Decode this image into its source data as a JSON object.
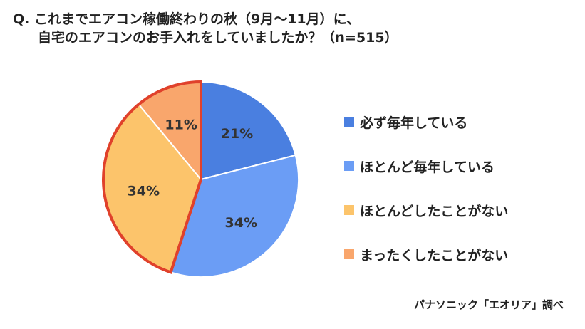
{
  "question": {
    "line1": "Q. これまでエアコン稼働終わりの秋（9月～11月）に、",
    "line2": "自宅のエアコンのお手入れをしていましたか？（n=515）"
  },
  "source": "パナソニック「エオリア」調べ",
  "chart_data": {
    "type": "pie",
    "title": "Q. これまでエアコン稼働終わりの秋（9月～11月）に、自宅のエアコンのお手入れをしていましたか？（n=515）",
    "n": 515,
    "legend_position": "right",
    "slices": [
      {
        "label": "必ず毎年している",
        "value": 21,
        "display": "21%",
        "color": "#4A7FE0"
      },
      {
        "label": "ほとんど毎年している",
        "value": 34,
        "display": "34%",
        "color": "#6B9DF5"
      },
      {
        "label": "ほとんどしたことがない",
        "value": 34,
        "display": "34%",
        "color": "#FCC46B"
      },
      {
        "label": "まったくしたことがない",
        "value": 11,
        "display": "11%",
        "color": "#F9A66C"
      }
    ],
    "highlight": {
      "slices": [
        "ほとんどしたことがない",
        "まったくしたことがない"
      ],
      "outline_color": "#E0412B"
    }
  }
}
